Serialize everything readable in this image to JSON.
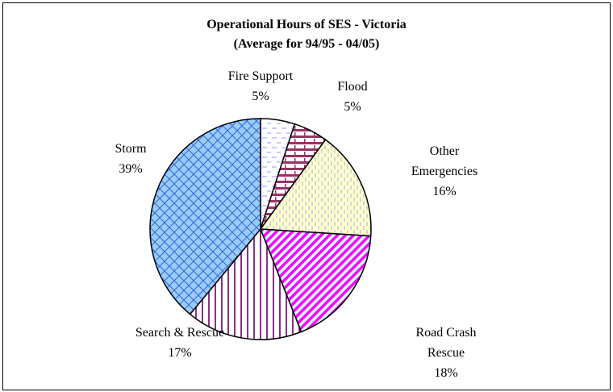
{
  "chart_data": {
    "type": "pie",
    "title": "Operational Hours of SES - Victoria",
    "subtitle": "(Average for 94/95 - 04/05)",
    "categories": [
      "Fire Support",
      "Flood",
      "Other Emergencies",
      "Road Crash Rescue",
      "Search & Rescue",
      "Storm"
    ],
    "values": [
      5,
      5,
      16,
      18,
      17,
      39
    ],
    "value_labels": [
      "5%",
      "5%",
      "16%",
      "18%",
      "17%",
      "39%"
    ],
    "colors": [
      "#9999ff",
      "#993366",
      "#ffffcc",
      "#ff00ff",
      "#660066",
      "#99ccff"
    ]
  }
}
